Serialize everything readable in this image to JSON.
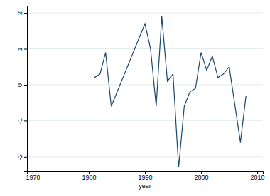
{
  "chart_data": {
    "type": "line",
    "x_label": "year",
    "x": [
      1981,
      1982,
      1983,
      1984,
      1990,
      1991,
      1992,
      1993,
      1994,
      1995,
      1996,
      1997,
      1998,
      1999,
      2000,
      2001,
      2002,
      2003,
      2004,
      2005,
      2007,
      2008
    ],
    "values": [
      0.2,
      0.3,
      0.9,
      -0.6,
      1.7,
      1.0,
      -0.6,
      1.9,
      0.1,
      0.3,
      -2.3,
      -0.6,
      -0.2,
      -0.1,
      0.9,
      0.4,
      0.8,
      0.2,
      0.3,
      0.5,
      -1.6,
      -0.3
    ],
    "color": "#1a476f",
    "xlim": [
      1969,
      2011
    ],
    "xticks": [
      1970,
      1980,
      1990,
      2000,
      2010
    ],
    "ylim": [
      -2.4,
      2.2
    ],
    "yticks": [
      -2,
      -1,
      0,
      1,
      2
    ],
    "grid": true
  }
}
